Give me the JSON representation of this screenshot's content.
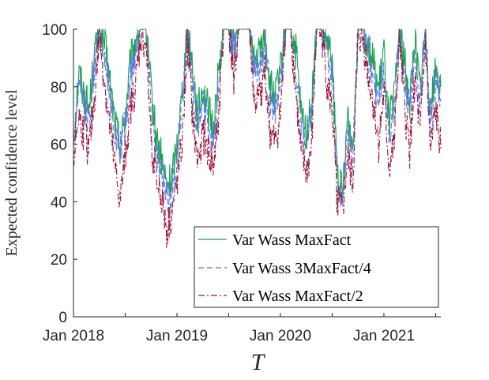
{
  "chart_data": {
    "type": "line",
    "title": "",
    "xlabel": "T",
    "ylabel": "Expected confidence level",
    "ylim": [
      0,
      100
    ],
    "xlim": [
      2018.0,
      2021.55
    ],
    "yticks": [
      0,
      20,
      40,
      60,
      80,
      100
    ],
    "xticks": [
      {
        "value": 2018.0,
        "label": "Jan 2018"
      },
      {
        "value": 2019.0,
        "label": "Jan 2019"
      },
      {
        "value": 2020.0,
        "label": "Jan 2020"
      },
      {
        "value": 2021.0,
        "label": "Jan 2021"
      }
    ],
    "minor_xticks": [
      2018.5,
      2019.5,
      2020.5,
      2021.5
    ],
    "grid": false,
    "legend_position": "bottom-right",
    "series": [
      {
        "name": "Var Wass MaxFact",
        "color": "#16a34a",
        "dash": "solid",
        "x": [
          2018.0,
          2018.05,
          2018.1,
          2018.15,
          2018.2,
          2018.25,
          2018.3,
          2018.35,
          2018.4,
          2018.45,
          2018.5,
          2018.55,
          2018.6,
          2018.65,
          2018.7,
          2018.75,
          2018.8,
          2018.85,
          2018.9,
          2018.95,
          2019.0,
          2019.05,
          2019.1,
          2019.15,
          2019.2,
          2019.25,
          2019.3,
          2019.35,
          2019.4,
          2019.45,
          2019.5,
          2019.55,
          2019.6,
          2019.65,
          2019.7,
          2019.75,
          2019.8,
          2019.85,
          2019.9,
          2019.95,
          2020.0,
          2020.05,
          2020.1,
          2020.15,
          2020.2,
          2020.25,
          2020.3,
          2020.35,
          2020.4,
          2020.45,
          2020.5,
          2020.55,
          2020.6,
          2020.65,
          2020.7,
          2020.75,
          2020.8,
          2020.85,
          2020.9,
          2020.95,
          2021.0,
          2021.05,
          2021.1,
          2021.15,
          2021.2,
          2021.25,
          2021.3,
          2021.35,
          2021.4,
          2021.45,
          2021.5,
          2021.55
        ],
        "y": [
          62,
          85,
          78,
          72,
          90,
          100,
          95,
          82,
          68,
          60,
          70,
          88,
          96,
          100,
          100,
          78,
          62,
          55,
          45,
          48,
          60,
          78,
          100,
          88,
          70,
          80,
          72,
          65,
          84,
          100,
          100,
          95,
          100,
          100,
          100,
          88,
          92,
          98,
          80,
          76,
          85,
          100,
          100,
          92,
          70,
          64,
          72,
          100,
          100,
          95,
          88,
          50,
          42,
          70,
          58,
          100,
          100,
          95,
          88,
          78,
          92,
          68,
          75,
          100,
          88,
          74,
          98,
          78,
          100,
          72,
          86,
          80
        ]
      },
      {
        "name": "Var Wass 3MaxFact/4",
        "color": "#5b7de0",
        "dash": "dashed",
        "x": [
          2018.0,
          2018.05,
          2018.1,
          2018.15,
          2018.2,
          2018.25,
          2018.3,
          2018.35,
          2018.4,
          2018.45,
          2018.5,
          2018.55,
          2018.6,
          2018.65,
          2018.7,
          2018.75,
          2018.8,
          2018.85,
          2018.9,
          2018.95,
          2019.0,
          2019.05,
          2019.1,
          2019.15,
          2019.2,
          2019.25,
          2019.3,
          2019.35,
          2019.4,
          2019.45,
          2019.5,
          2019.55,
          2019.6,
          2019.65,
          2019.7,
          2019.75,
          2019.8,
          2019.85,
          2019.9,
          2019.95,
          2020.0,
          2020.05,
          2020.1,
          2020.15,
          2020.2,
          2020.25,
          2020.3,
          2020.35,
          2020.4,
          2020.45,
          2020.5,
          2020.55,
          2020.6,
          2020.65,
          2020.7,
          2020.75,
          2020.8,
          2020.85,
          2020.9,
          2020.95,
          2021.0,
          2021.05,
          2021.1,
          2021.15,
          2021.2,
          2021.25,
          2021.3,
          2021.35,
          2021.4,
          2021.45,
          2021.5,
          2021.55
        ],
        "y": [
          60,
          80,
          74,
          68,
          86,
          100,
          92,
          78,
          64,
          58,
          66,
          84,
          93,
          100,
          100,
          74,
          58,
          50,
          40,
          44,
          56,
          74,
          100,
          84,
          66,
          76,
          68,
          62,
          80,
          100,
          100,
          92,
          100,
          100,
          100,
          84,
          88,
          95,
          76,
          72,
          80,
          100,
          100,
          88,
          66,
          60,
          68,
          100,
          100,
          92,
          84,
          46,
          38,
          66,
          54,
          100,
          100,
          92,
          84,
          74,
          88,
          64,
          71,
          100,
          84,
          70,
          95,
          74,
          100,
          68,
          82,
          76
        ]
      },
      {
        "name": "Var Wass MaxFact/2",
        "color": "#a0153e",
        "dash": "dashdot",
        "x": [
          2018.0,
          2018.05,
          2018.1,
          2018.15,
          2018.2,
          2018.25,
          2018.3,
          2018.35,
          2018.4,
          2018.45,
          2018.5,
          2018.55,
          2018.6,
          2018.65,
          2018.7,
          2018.75,
          2018.8,
          2018.85,
          2018.9,
          2018.95,
          2019.0,
          2019.05,
          2019.1,
          2019.15,
          2019.2,
          2019.25,
          2019.3,
          2019.35,
          2019.4,
          2019.45,
          2019.5,
          2019.55,
          2019.6,
          2019.65,
          2019.7,
          2019.75,
          2019.8,
          2019.85,
          2019.9,
          2019.95,
          2020.0,
          2020.05,
          2020.1,
          2020.15,
          2020.2,
          2020.25,
          2020.3,
          2020.35,
          2020.4,
          2020.45,
          2020.5,
          2020.55,
          2020.6,
          2020.65,
          2020.7,
          2020.75,
          2020.8,
          2020.85,
          2020.9,
          2020.95,
          2021.0,
          2021.05,
          2021.1,
          2021.15,
          2021.2,
          2021.25,
          2021.3,
          2021.35,
          2021.4,
          2021.45,
          2021.5,
          2021.55
        ],
        "y": [
          55,
          70,
          64,
          58,
          75,
          98,
          82,
          66,
          52,
          40,
          56,
          72,
          80,
          98,
          95,
          62,
          48,
          42,
          30,
          36,
          46,
          60,
          96,
          70,
          54,
          64,
          58,
          52,
          68,
          100,
          100,
          84,
          100,
          100,
          100,
          74,
          76,
          86,
          64,
          60,
          70,
          100,
          100,
          78,
          56,
          50,
          58,
          100,
          98,
          82,
          72,
          40,
          36,
          56,
          46,
          98,
          96,
          84,
          74,
          60,
          78,
          52,
          60,
          98,
          72,
          58,
          84,
          62,
          96,
          56,
          72,
          58
        ]
      }
    ]
  }
}
